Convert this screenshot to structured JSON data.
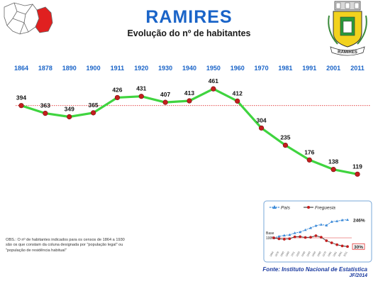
{
  "title": "RAMIRES",
  "subtitle": "Evolução do nº de habitantes",
  "colors": {
    "title_blue": "#1a64c8",
    "year_blue": "#1a64c8",
    "line_green": "#3fd43f",
    "marker_red": "#c41e1e",
    "reference_line": "#e03030",
    "pais_blue": "#3b8ad8"
  },
  "chart_data": [
    {
      "type": "line",
      "title": "",
      "xlabel": "",
      "ylabel": "",
      "x": [
        "1864",
        "1878",
        "1890",
        "1900",
        "1911",
        "1920",
        "1930",
        "1940",
        "1950",
        "1960",
        "1970",
        "1981",
        "1991",
        "2001",
        "2011"
      ],
      "series": [
        {
          "name": "",
          "values": [
            394,
            363,
            349,
            365,
            426,
            431,
            407,
            413,
            461,
            412,
            304,
            235,
            176,
            138,
            119
          ]
        }
      ],
      "reference_line": 394,
      "ylim": [
        100,
        470
      ],
      "grid": false,
      "legend": "none"
    },
    {
      "type": "line",
      "title": "",
      "xlabel": "",
      "ylabel": "",
      "x": [
        "1864",
        "1878",
        "1890",
        "1900",
        "1911",
        "1920",
        "1930",
        "1940",
        "1950",
        "1960",
        "1970",
        "1981",
        "1991",
        "2001",
        "2011"
      ],
      "series": [
        {
          "name": "País",
          "values": [
            100,
            112,
            120,
            124,
            139,
            147,
            164,
            180,
            198,
            207,
            201,
            230,
            235,
            243,
            246
          ]
        },
        {
          "name": "Freguesia",
          "values": [
            100,
            92,
            89,
            93,
            108,
            109,
            103,
            105,
            117,
            105,
            77,
            60,
            45,
            35,
            30
          ]
        }
      ],
      "base_label": "Base",
      "base_value_label": "100%",
      "end_labels": [
        "246%",
        "30%"
      ],
      "ylim": [
        20,
        260
      ],
      "legend": "top"
    }
  ],
  "observation_note": "OBS.: O nº de habitantes indicados para os censos de 1864 a 1930 são os que constam da coluna designada por \"população legal\" ou \"população de residência habitual\"",
  "source": "Fonte: Instituto Nacional de Estatística",
  "credit": "JF/2014",
  "crest_label": "RAMIRES"
}
